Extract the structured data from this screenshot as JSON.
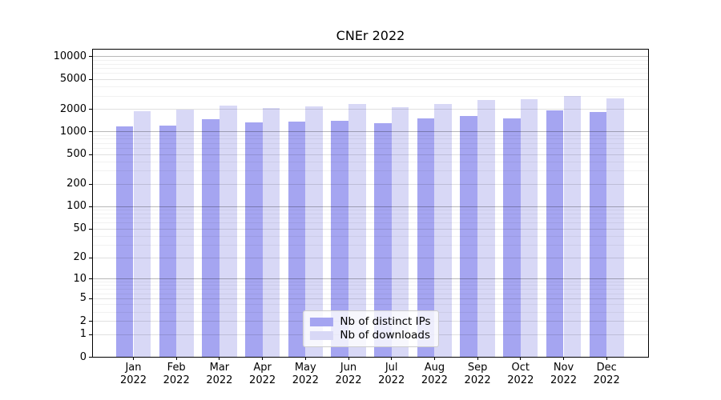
{
  "chart_data": {
    "type": "bar",
    "title": "CNEr 2022",
    "categories": [
      "Jan 2022",
      "Feb 2022",
      "Mar 2022",
      "Apr 2022",
      "May 2022",
      "Jun 2022",
      "Jul 2022",
      "Aug 2022",
      "Sep 2022",
      "Oct 2022",
      "Nov 2022",
      "Dec 2022"
    ],
    "series": [
      {
        "name": "Nb of distinct IPs",
        "color": "#a5a5f1",
        "values": [
          1160,
          1190,
          1440,
          1320,
          1340,
          1400,
          1280,
          1480,
          1600,
          1480,
          1900,
          1800
        ]
      },
      {
        "name": "Nb of downloads",
        "color": "#d8d8f6",
        "values": [
          1860,
          1940,
          2220,
          2080,
          2180,
          2350,
          2110,
          2350,
          2640,
          2660,
          3000,
          2790
        ]
      }
    ],
    "xlabel": "",
    "ylabel": "",
    "yscale": "log10(1+v)",
    "yticks": [
      0,
      1,
      2,
      5,
      10,
      20,
      50,
      100,
      200,
      500,
      1000,
      2000,
      5000,
      10000
    ],
    "ylim": [
      0,
      12300
    ],
    "grid": "horizontal",
    "legend_position": "lower center",
    "axis_color": "#000000"
  }
}
